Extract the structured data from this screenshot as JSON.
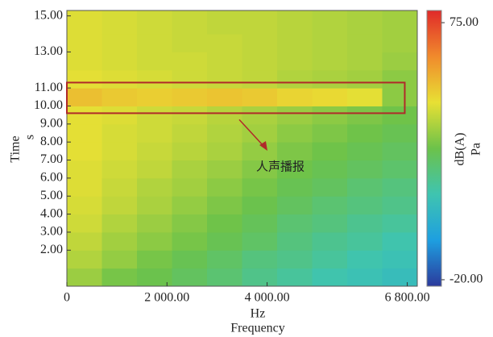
{
  "chart_data": {
    "type": "heatmap",
    "x_label": "Hz",
    "x_title": "Frequency",
    "y_label": "s",
    "y_title": "Time",
    "colorbar_label": "dB(A)",
    "colorbar_unit": "Pa",
    "xlim": [
      0,
      7000
    ],
    "xticks": [
      0,
      {
        "value": 2000,
        "label": "2 000.00"
      },
      {
        "value": 4000,
        "label": "4 000.00"
      },
      {
        "value": 6800,
        "label": "6 800.00"
      }
    ],
    "ylim": [
      0,
      15.3
    ],
    "yticks": [
      {
        "value": 2,
        "label": "2.00"
      },
      {
        "value": 3,
        "label": "3.00"
      },
      {
        "value": 4,
        "label": "4.00"
      },
      {
        "value": 5,
        "label": "5.00"
      },
      {
        "value": 6,
        "label": "6.00"
      },
      {
        "value": 7,
        "label": "7.00"
      },
      {
        "value": 8,
        "label": "8.00"
      },
      {
        "value": 9,
        "label": "9.00"
      },
      {
        "value": 10,
        "label": "10.00"
      },
      {
        "value": 11,
        "label": "11.00"
      },
      {
        "value": 13,
        "label": "13.00"
      },
      {
        "value": 15,
        "label": "15.00"
      }
    ],
    "clim": [
      -22.4,
      79.5
    ],
    "cticks": [
      {
        "value": 75,
        "label": "75.00"
      },
      {
        "value": -20,
        "label": "-20.00"
      }
    ],
    "colorscale": [
      "#2b3a9c",
      "#1e9fe0",
      "#3fc4b0",
      "#6cc24a",
      "#e8e034",
      "#f08a2c",
      "#e02a2a"
    ],
    "x_edges": [
      0,
      700,
      1400,
      2100,
      2800,
      3500,
      4200,
      4900,
      5600,
      6300,
      7000
    ],
    "y_edges": [
      0,
      1,
      2,
      3,
      4,
      5,
      6,
      7,
      8,
      9,
      10,
      11,
      12,
      13,
      14,
      15.3
    ],
    "z": [
      [
        35,
        30,
        28,
        25,
        22,
        18,
        15,
        12,
        10,
        8
      ],
      [
        38,
        34,
        30,
        27,
        24,
        20,
        18,
        15,
        12,
        10
      ],
      [
        40,
        36,
        33,
        30,
        27,
        24,
        20,
        17,
        15,
        12
      ],
      [
        42,
        38,
        35,
        32,
        29,
        26,
        22,
        20,
        17,
        15
      ],
      [
        43,
        40,
        37,
        34,
        31,
        28,
        25,
        22,
        20,
        18
      ],
      [
        44,
        41,
        38,
        36,
        33,
        30,
        27,
        25,
        22,
        20
      ],
      [
        44,
        42,
        40,
        37,
        35,
        32,
        29,
        27,
        25,
        23
      ],
      [
        45,
        43,
        41,
        39,
        37,
        34,
        31,
        29,
        27,
        25
      ],
      [
        45,
        43,
        42,
        40,
        38,
        36,
        33,
        31,
        29,
        27
      ],
      [
        45,
        44,
        42,
        41,
        39,
        37,
        35,
        33,
        31,
        29
      ],
      [
        52,
        50,
        49,
        50,
        51,
        50,
        48,
        47,
        45,
        33
      ],
      [
        45,
        44,
        43,
        42,
        41,
        40,
        38,
        37,
        36,
        33
      ],
      [
        44,
        43,
        42,
        42,
        41,
        40,
        39,
        38,
        37,
        35
      ],
      [
        44,
        43,
        42,
        41,
        41,
        40,
        39,
        38,
        37,
        36
      ],
      [
        44,
        43,
        42,
        41,
        40,
        40,
        39,
        38,
        37,
        36
      ]
    ],
    "annotation": {
      "text": "人声播报",
      "x": [
        0,
        6750
      ],
      "y": [
        9.6,
        11.3
      ],
      "color": "#b02a2a"
    }
  }
}
